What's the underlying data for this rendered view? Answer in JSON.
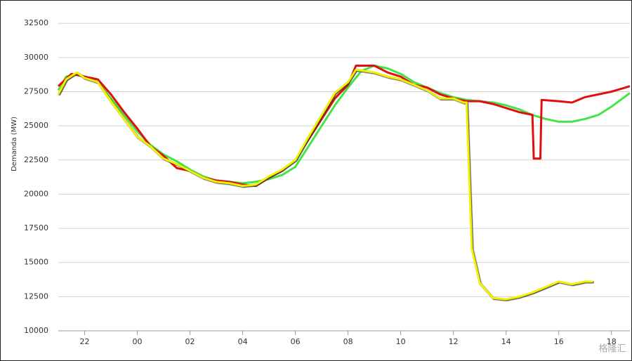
{
  "chart_data": {
    "type": "line",
    "y_label": "Demanda (MW)",
    "watermark": "格隆汇",
    "ylim": [
      10000,
      34000
    ],
    "yticks": [
      10000,
      12500,
      15000,
      17500,
      20000,
      22500,
      25000,
      27500,
      30000,
      32500
    ],
    "xlim": [
      21,
      42.7
    ],
    "xticks": [
      {
        "value": 22,
        "label": "22"
      },
      {
        "value": 24,
        "label": "00"
      },
      {
        "value": 26,
        "label": "02"
      },
      {
        "value": 28,
        "label": "04"
      },
      {
        "value": 30,
        "label": "06"
      },
      {
        "value": 32,
        "label": "08"
      },
      {
        "value": 34,
        "label": "10"
      },
      {
        "value": 36,
        "label": "12"
      },
      {
        "value": 38,
        "label": "14"
      },
      {
        "value": 40,
        "label": "16"
      },
      {
        "value": 42,
        "label": "18"
      }
    ],
    "grid": true,
    "series": [
      {
        "color": "#44e34a",
        "x": [
          21,
          21.3,
          21.7,
          22,
          22.5,
          23,
          23.5,
          24,
          24.5,
          25,
          25.5,
          26,
          26.5,
          27,
          27.5,
          28,
          28.5,
          29,
          29.5,
          30,
          30.5,
          31,
          31.5,
          32,
          32.5,
          33,
          33.5,
          34,
          34.5,
          35,
          35.5,
          36,
          36.5,
          37,
          37.5,
          38,
          38.5,
          39,
          39.5,
          40,
          40.5,
          41,
          41.5,
          42,
          42.7
        ],
        "values": [
          27600,
          28600,
          28800,
          28600,
          28200,
          27000,
          25800,
          24600,
          23600,
          22900,
          22400,
          21800,
          21300,
          21000,
          20900,
          20800,
          20900,
          21100,
          21400,
          22000,
          23500,
          25000,
          26500,
          27800,
          29000,
          29400,
          29200,
          28800,
          28200,
          27800,
          27400,
          27100,
          26900,
          26800,
          26700,
          26500,
          26200,
          25800,
          25500,
          25300,
          25300,
          25500,
          25800,
          26400,
          27400
        ]
      },
      {
        "color": "#e11010",
        "x": [
          21,
          21.5,
          22,
          22.5,
          23,
          23.5,
          24,
          24.5,
          25,
          25.5,
          26,
          26.5,
          27,
          27.5,
          28,
          28.5,
          29,
          29.5,
          30,
          30.5,
          31,
          31.5,
          32,
          32.3,
          33,
          33.5,
          34,
          34.5,
          35,
          35.5,
          36,
          36.5,
          37,
          37.5,
          38,
          38.5,
          39,
          39.05,
          39.3,
          39.35,
          40,
          40.5,
          41,
          41.5,
          42,
          42.7
        ],
        "values": [
          27900,
          28800,
          28600,
          28400,
          27300,
          26000,
          24800,
          23500,
          22800,
          21900,
          21700,
          21200,
          21000,
          20900,
          20700,
          20600,
          21200,
          21700,
          22500,
          24000,
          25500,
          27000,
          28000,
          29400,
          29400,
          28900,
          28600,
          28000,
          27800,
          27300,
          27000,
          26800,
          26800,
          26600,
          26300,
          26000,
          25800,
          22600,
          22600,
          26900,
          26800,
          26700,
          27100,
          27300,
          27500,
          27900
        ]
      },
      {
        "color": "#f2f200",
        "x": [
          21,
          21.3,
          21.7,
          22,
          22.5,
          23,
          23.5,
          24,
          24.5,
          25,
          25.5,
          26,
          26.5,
          27,
          27.5,
          28,
          28.5,
          29,
          29.5,
          30,
          30.5,
          31,
          31.5,
          32,
          32.3,
          33,
          33.5,
          34,
          34.5,
          35,
          35.5,
          36,
          36.4,
          36.5,
          36.7,
          37,
          37.5,
          38,
          38.5,
          39,
          39.5,
          40,
          40.5,
          41,
          41.3
        ],
        "values": [
          27300,
          28400,
          28900,
          28500,
          28200,
          26800,
          25500,
          24200,
          23500,
          22600,
          22200,
          21700,
          21200,
          20900,
          20800,
          20600,
          20700,
          21300,
          21800,
          22500,
          24200,
          25800,
          27400,
          28200,
          29100,
          28900,
          28600,
          28400,
          28000,
          27600,
          27000,
          27000,
          26700,
          26700,
          16000,
          13500,
          12400,
          12300,
          12500,
          12800,
          13200,
          13600,
          13400,
          13600,
          13600
        ]
      }
    ]
  }
}
